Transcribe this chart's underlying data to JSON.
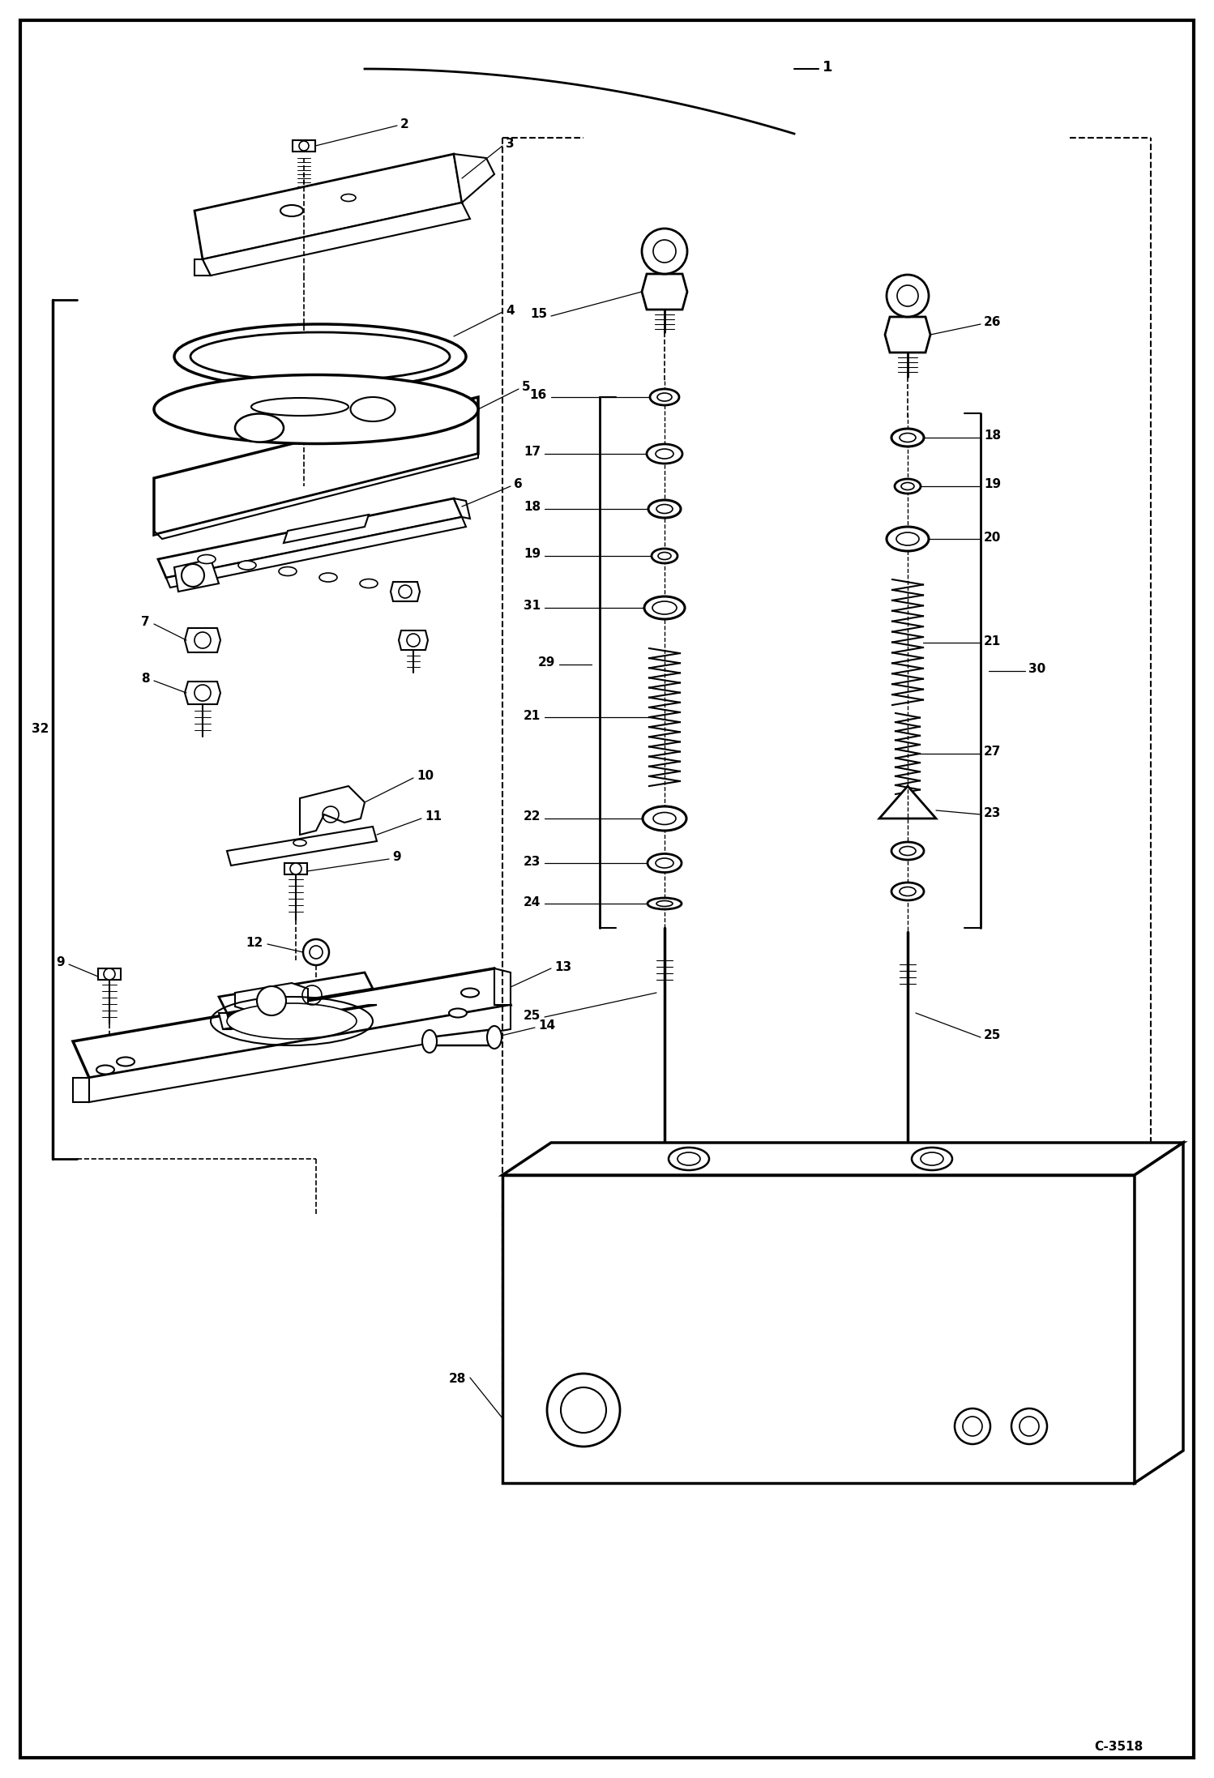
{
  "bg_color": "#ffffff",
  "line_color": "#000000",
  "text_color": "#000000",
  "figure_width": 14.98,
  "figure_height": 21.94,
  "dpi": 100,
  "watermark": "C-3518",
  "lw_main": 1.8,
  "lw_thin": 1.0,
  "lw_leader": 0.9,
  "fontsize_label": 11,
  "fontsize_watermark": 11
}
